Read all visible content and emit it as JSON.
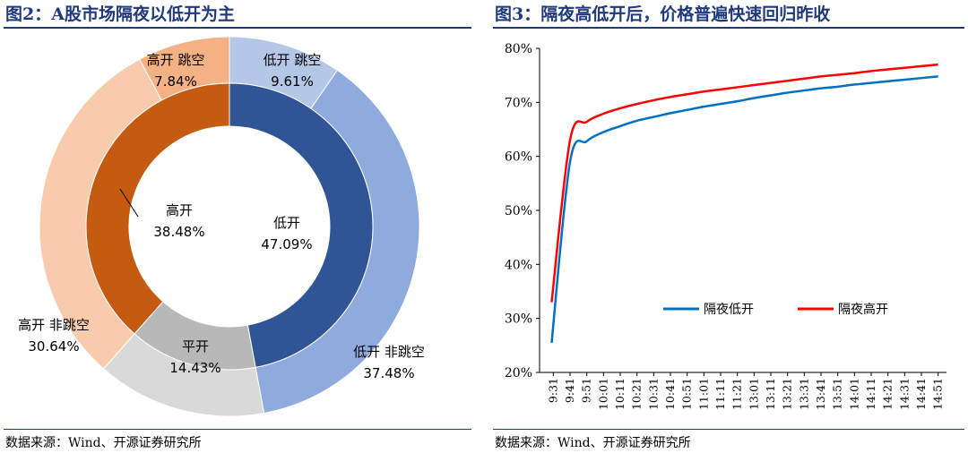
{
  "left": {
    "title": "图2：A股市场隔夜以低开为主",
    "source": "数据来源：Wind、开源证券研究所"
  },
  "right": {
    "title": "图3：隔夜高低开后，价格普遍快速回归昨收",
    "source": "数据来源：Wind、开源证券研究所"
  },
  "chart_data": [
    {
      "type": "pie",
      "variant": "nested-donut",
      "title": "A股市场隔夜以低开为主",
      "inner_ring": [
        {
          "name": "低开",
          "value": 47.09,
          "label": "47.09%",
          "color": "#2f5597"
        },
        {
          "name": "平开",
          "value": 14.43,
          "label": "14.43%",
          "color": "#b8b8b8"
        },
        {
          "name": "高开",
          "value": 38.48,
          "label": "38.48%",
          "color": "#c55a11"
        }
      ],
      "outer_ring": [
        {
          "name": "低开 跳空",
          "value": 9.61,
          "label": "9.61%",
          "color": "#b4c7e7"
        },
        {
          "name": "低开 非跳空",
          "value": 37.48,
          "label": "37.48%",
          "color": "#8faadc"
        },
        {
          "name": "平开",
          "value": 14.43,
          "label": "",
          "color": "#d9d9d9"
        },
        {
          "name": "高开 非跳空",
          "value": 30.64,
          "label": "30.64%",
          "color": "#f8cbad"
        },
        {
          "name": "高开 跳空",
          "value": 7.84,
          "label": "7.84%",
          "color": "#f4b183"
        }
      ]
    },
    {
      "type": "line",
      "title": "隔夜高低开后，价格普遍快速回归昨收",
      "ylabel": "",
      "xlabel": "",
      "ylim": [
        20,
        80
      ],
      "yticks": [
        "20%",
        "30%",
        "40%",
        "50%",
        "60%",
        "70%",
        "80%"
      ],
      "x": [
        "9:31",
        "9:41",
        "9:51",
        "10:01",
        "10:11",
        "10:21",
        "10:31",
        "10:41",
        "10:51",
        "11:01",
        "11:11",
        "11:21",
        "13:01",
        "13:11",
        "13:21",
        "13:31",
        "13:41",
        "13:51",
        "14:01",
        "14:11",
        "14:21",
        "14:31",
        "14:41",
        "14:51"
      ],
      "legend_position": "center-right",
      "grid": false,
      "series": [
        {
          "name": "隔夜低开",
          "color": "#0070c0",
          "values": [
            25.5,
            59.0,
            62.8,
            64.5,
            65.6,
            66.6,
            67.3,
            68.0,
            68.6,
            69.2,
            69.7,
            70.2,
            70.8,
            71.3,
            71.8,
            72.2,
            72.6,
            72.9,
            73.3,
            73.6,
            73.9,
            74.2,
            74.5,
            74.8
          ]
        },
        {
          "name": "隔夜高开",
          "color": "#ff0000",
          "values": [
            33.0,
            63.0,
            66.4,
            67.9,
            68.9,
            69.7,
            70.4,
            71.0,
            71.5,
            72.0,
            72.4,
            72.8,
            73.2,
            73.6,
            74.0,
            74.4,
            74.8,
            75.1,
            75.4,
            75.8,
            76.1,
            76.4,
            76.7,
            77.0
          ]
        }
      ]
    }
  ]
}
